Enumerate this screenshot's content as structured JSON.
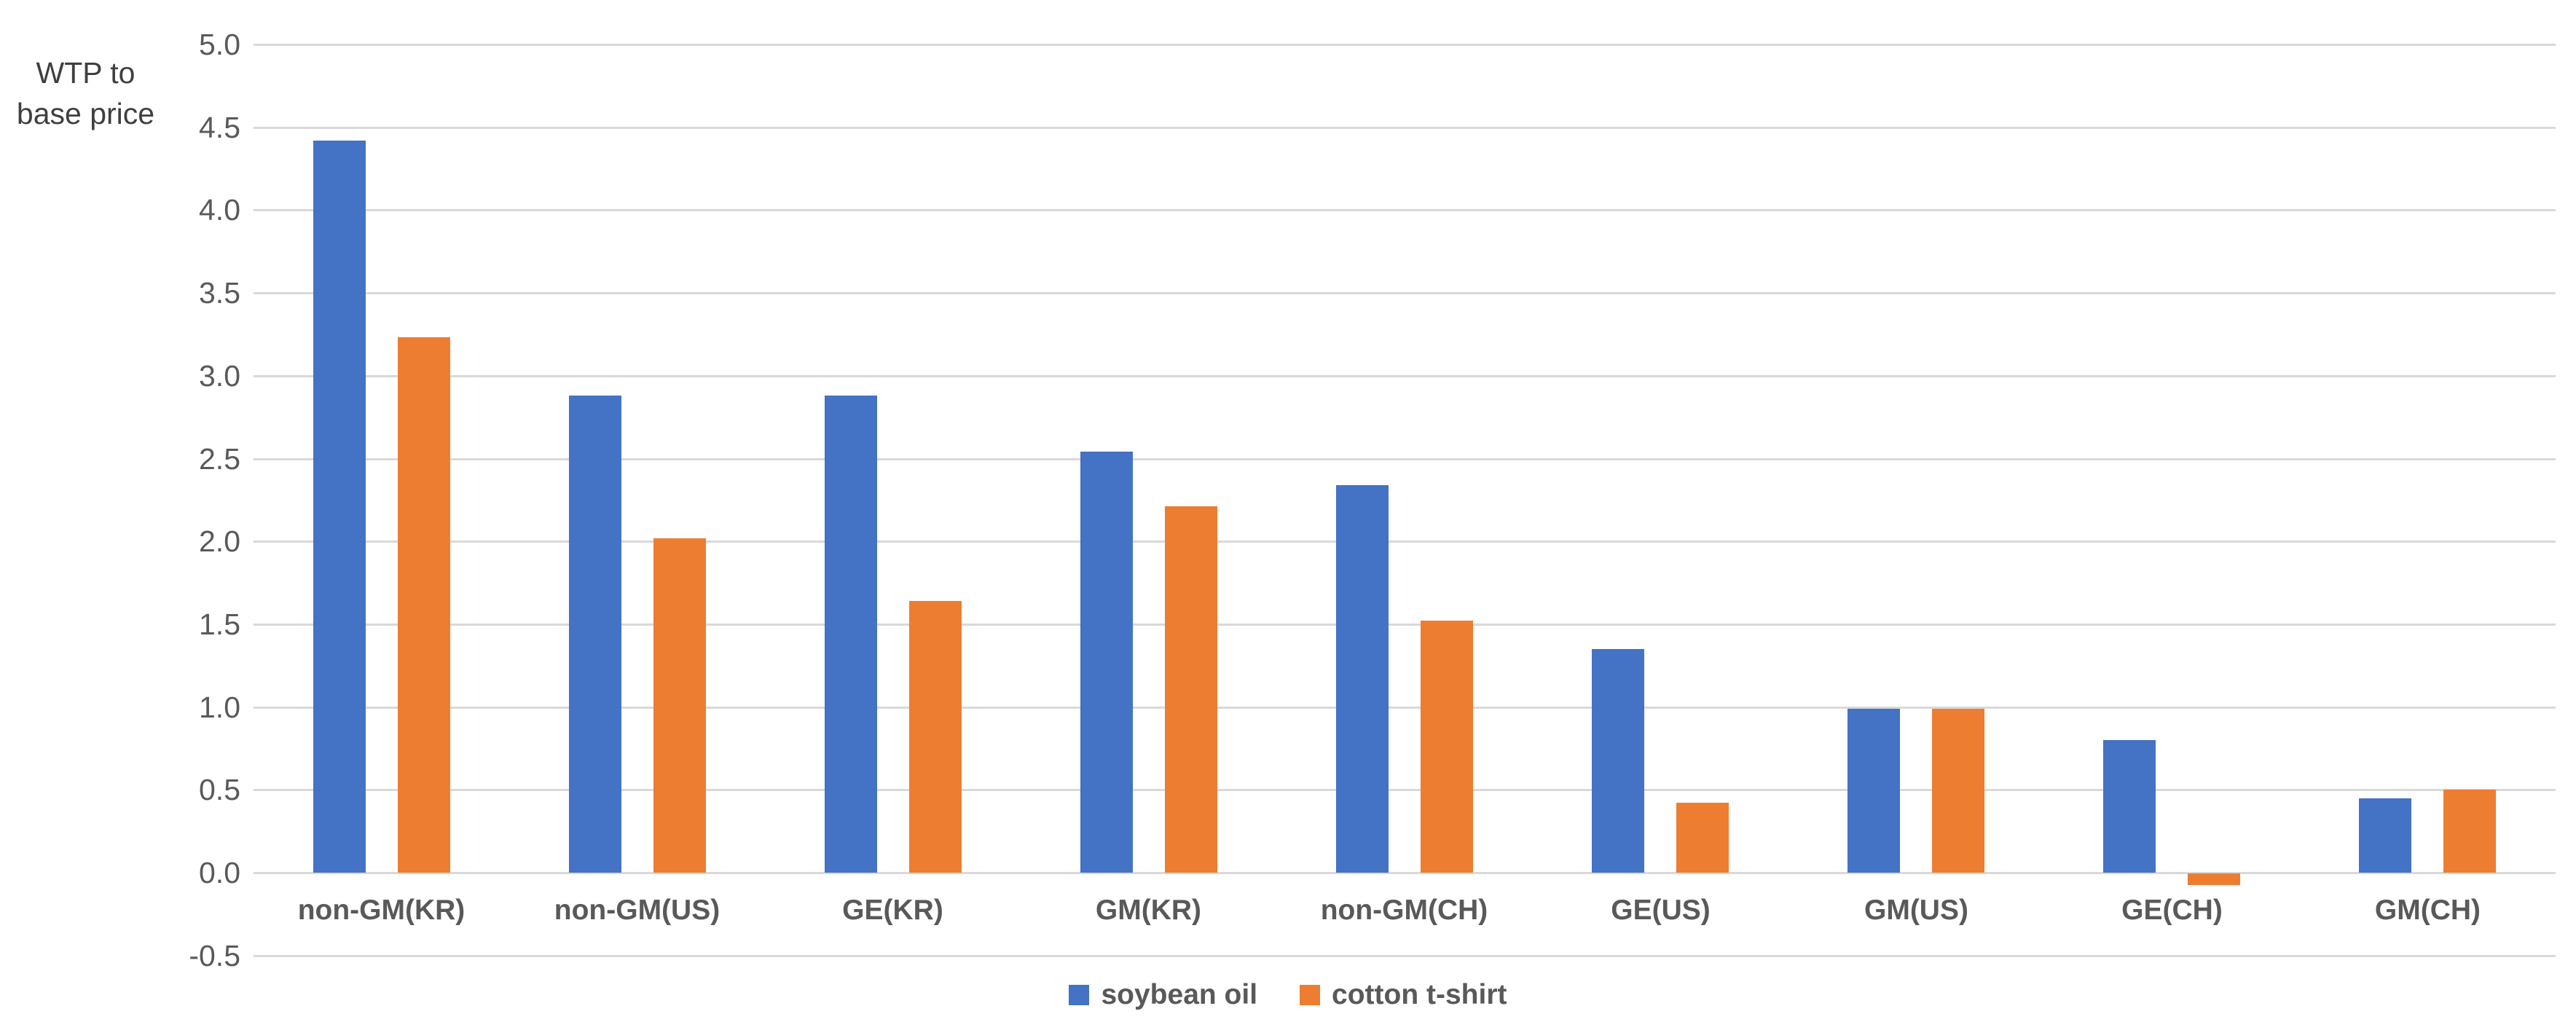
{
  "chart_data": {
    "type": "bar",
    "title": "",
    "ylabel": "WTP to base price",
    "ylabel_lines": [
      "WTP to",
      "base price"
    ],
    "xlabel": "",
    "categories": [
      "non-GM(KR)",
      "non-GM(US)",
      "GE(KR)",
      "GM(KR)",
      "non-GM(CH)",
      "GE(US)",
      "GM(US)",
      "GE(CH)",
      "GM(CH)"
    ],
    "series": [
      {
        "name": "soybean oil",
        "color": "#4472C4",
        "values": [
          4.42,
          2.88,
          2.88,
          2.54,
          2.34,
          1.35,
          0.99,
          0.8,
          0.45
        ]
      },
      {
        "name": "cotton t-shirt",
        "color": "#ED7D31",
        "values": [
          3.23,
          2.02,
          1.64,
          2.21,
          1.52,
          0.42,
          0.99,
          -0.07,
          0.5
        ]
      }
    ],
    "y_ticks": [
      "5.0",
      "4.5",
      "4.0",
      "3.5",
      "3.0",
      "2.5",
      "2.0",
      "1.5",
      "1.0",
      "0.5",
      "0.0",
      "-0.5"
    ],
    "y_tick_values": [
      5.0,
      4.5,
      4.0,
      3.5,
      3.0,
      2.5,
      2.0,
      1.5,
      1.0,
      0.5,
      0.0,
      -0.5
    ],
    "ylim": [
      -0.5,
      5.0
    ],
    "grid": true,
    "legend_position": "bottom-center",
    "colors": {
      "gridline": "#d9d9d9",
      "tick_text": "#595959",
      "category_text": "#595959",
      "axis_title_text": "#3f3f3f",
      "background": "#ffffff"
    }
  }
}
